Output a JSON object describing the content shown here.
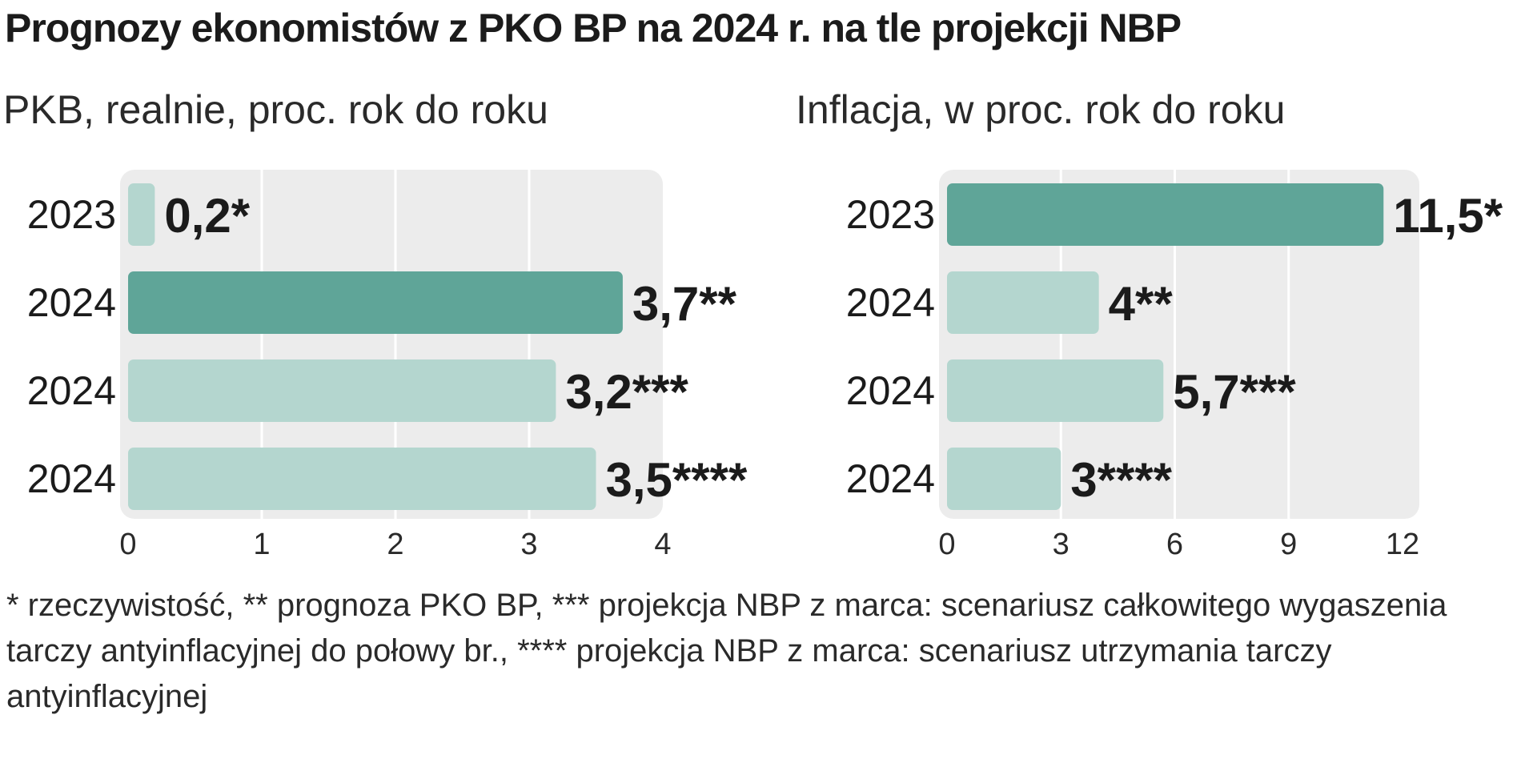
{
  "title": "Prognozy ekonomistów z PKO BP na 2024 r. na tle projekcji NBP",
  "colors": {
    "dark": "#5fa598",
    "light": "#b4d6cf",
    "panel": "#ececec",
    "grid": "#ffffff",
    "text": "#1b1b1b"
  },
  "chart_data": [
    {
      "type": "bar",
      "orientation": "horizontal",
      "title": "PKB, realnie, proc. rok do roku",
      "categories": [
        "2023",
        "2024",
        "2024",
        "2024"
      ],
      "values": [
        0.2,
        3.7,
        3.2,
        3.5
      ],
      "data_labels": [
        "0,2*",
        "3,7**",
        "3,2***",
        "3,5****"
      ],
      "highlight": [
        false,
        true,
        false,
        false
      ],
      "xlim": [
        0,
        4
      ],
      "xticks": [
        "0",
        "1",
        "2",
        "3",
        "4"
      ],
      "grid": true
    },
    {
      "type": "bar",
      "orientation": "horizontal",
      "title": "Inflacja, w proc. rok do roku",
      "categories": [
        "2023",
        "2024",
        "2024",
        "2024"
      ],
      "values": [
        11.5,
        4,
        5.7,
        3
      ],
      "data_labels": [
        "11,5*",
        "4**",
        "5,7***",
        "3****"
      ],
      "highlight": [
        true,
        false,
        false,
        false
      ],
      "xlim": [
        0,
        12
      ],
      "xticks": [
        "0",
        "3",
        "6",
        "9",
        "12"
      ],
      "grid": true
    }
  ],
  "footnote": "* rzeczywistość, ** prognoza PKO BP, *** projekcja NBP z marca: scenariusz całkowitego wygaszenia tarczy antyinflacyjnej do połowy br., **** projekcja NBP z marca: scenariusz utrzymania tarczy antyinflacyjnej"
}
